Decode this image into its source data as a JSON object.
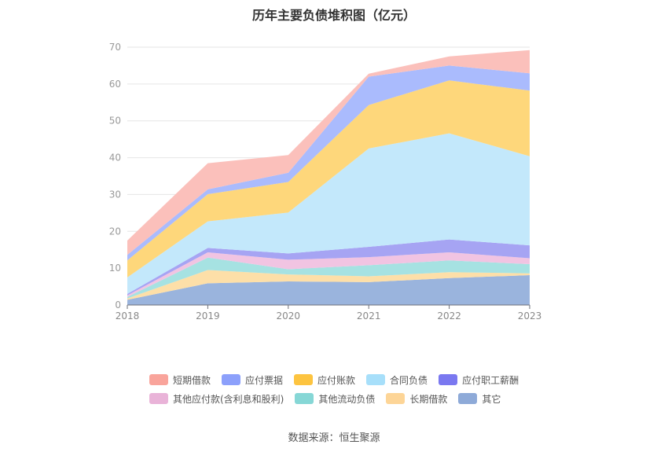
{
  "source_text": "数据来源：恒生聚源",
  "chart_data": {
    "type": "area",
    "stacked": true,
    "title": "历年主要负债堆积图（亿元）",
    "xlabel": "",
    "ylabel": "",
    "categories": [
      "2018",
      "2019",
      "2020",
      "2021",
      "2022",
      "2023"
    ],
    "ylim": [
      0,
      70
    ],
    "yticks": [
      0,
      10,
      20,
      30,
      40,
      50,
      60,
      70
    ],
    "grid": true,
    "legend_position": "bottom",
    "series": [
      {
        "name": "其它",
        "color": "#9ab4dd",
        "values": [
          1.4,
          5.9,
          6.4,
          6.2,
          7.3,
          8.1
        ]
      },
      {
        "name": "长期借款",
        "color": "#fddfa8",
        "values": [
          0.4,
          3.6,
          1.9,
          1.6,
          1.6,
          0.5
        ]
      },
      {
        "name": "其他流动负债",
        "color": "#a6e2e2",
        "values": [
          0.4,
          3.4,
          1.4,
          3.0,
          3.2,
          2.5
        ]
      },
      {
        "name": "其他应付款(含利息和股利)",
        "color": "#f1c4e2",
        "values": [
          0.4,
          1.4,
          2.6,
          2.2,
          2.2,
          1.6
        ]
      },
      {
        "name": "应付职工薪酬",
        "color": "#a6a4f3",
        "values": [
          0.4,
          1.2,
          1.7,
          2.8,
          3.5,
          3.5
        ]
      },
      {
        "name": "合同负债",
        "color": "#c3e8fb",
        "values": [
          4.5,
          7.2,
          11.1,
          26.7,
          28.8,
          24.2
        ]
      },
      {
        "name": "应付账款",
        "color": "#fed77b",
        "values": [
          4.6,
          7.4,
          8.3,
          11.8,
          14.4,
          17.8
        ]
      },
      {
        "name": "应付票据",
        "color": "#aabbfd",
        "values": [
          1.5,
          1.3,
          2.5,
          7.7,
          4.0,
          4.7
        ]
      },
      {
        "name": "短期借款",
        "color": "#fbc0bb",
        "values": [
          3.9,
          7.1,
          4.8,
          0.8,
          2.5,
          6.3
        ]
      }
    ]
  },
  "legend": [
    {
      "name": "短期借款",
      "color": "#f9a49b"
    },
    {
      "name": "应付票据",
      "color": "#8ca0fb"
    },
    {
      "name": "应付账款",
      "color": "#fdc440"
    },
    {
      "name": "合同负债",
      "color": "#a7dffa"
    },
    {
      "name": "应付职工薪酬",
      "color": "#7a78f0"
    },
    {
      "name": "其他应付款(含利息和股利)",
      "color": "#e9b3d8"
    },
    {
      "name": "其他流动负债",
      "color": "#86d7d6"
    },
    {
      "name": "长期借款",
      "color": "#fdd597"
    },
    {
      "name": "其它",
      "color": "#8eaad8"
    }
  ]
}
